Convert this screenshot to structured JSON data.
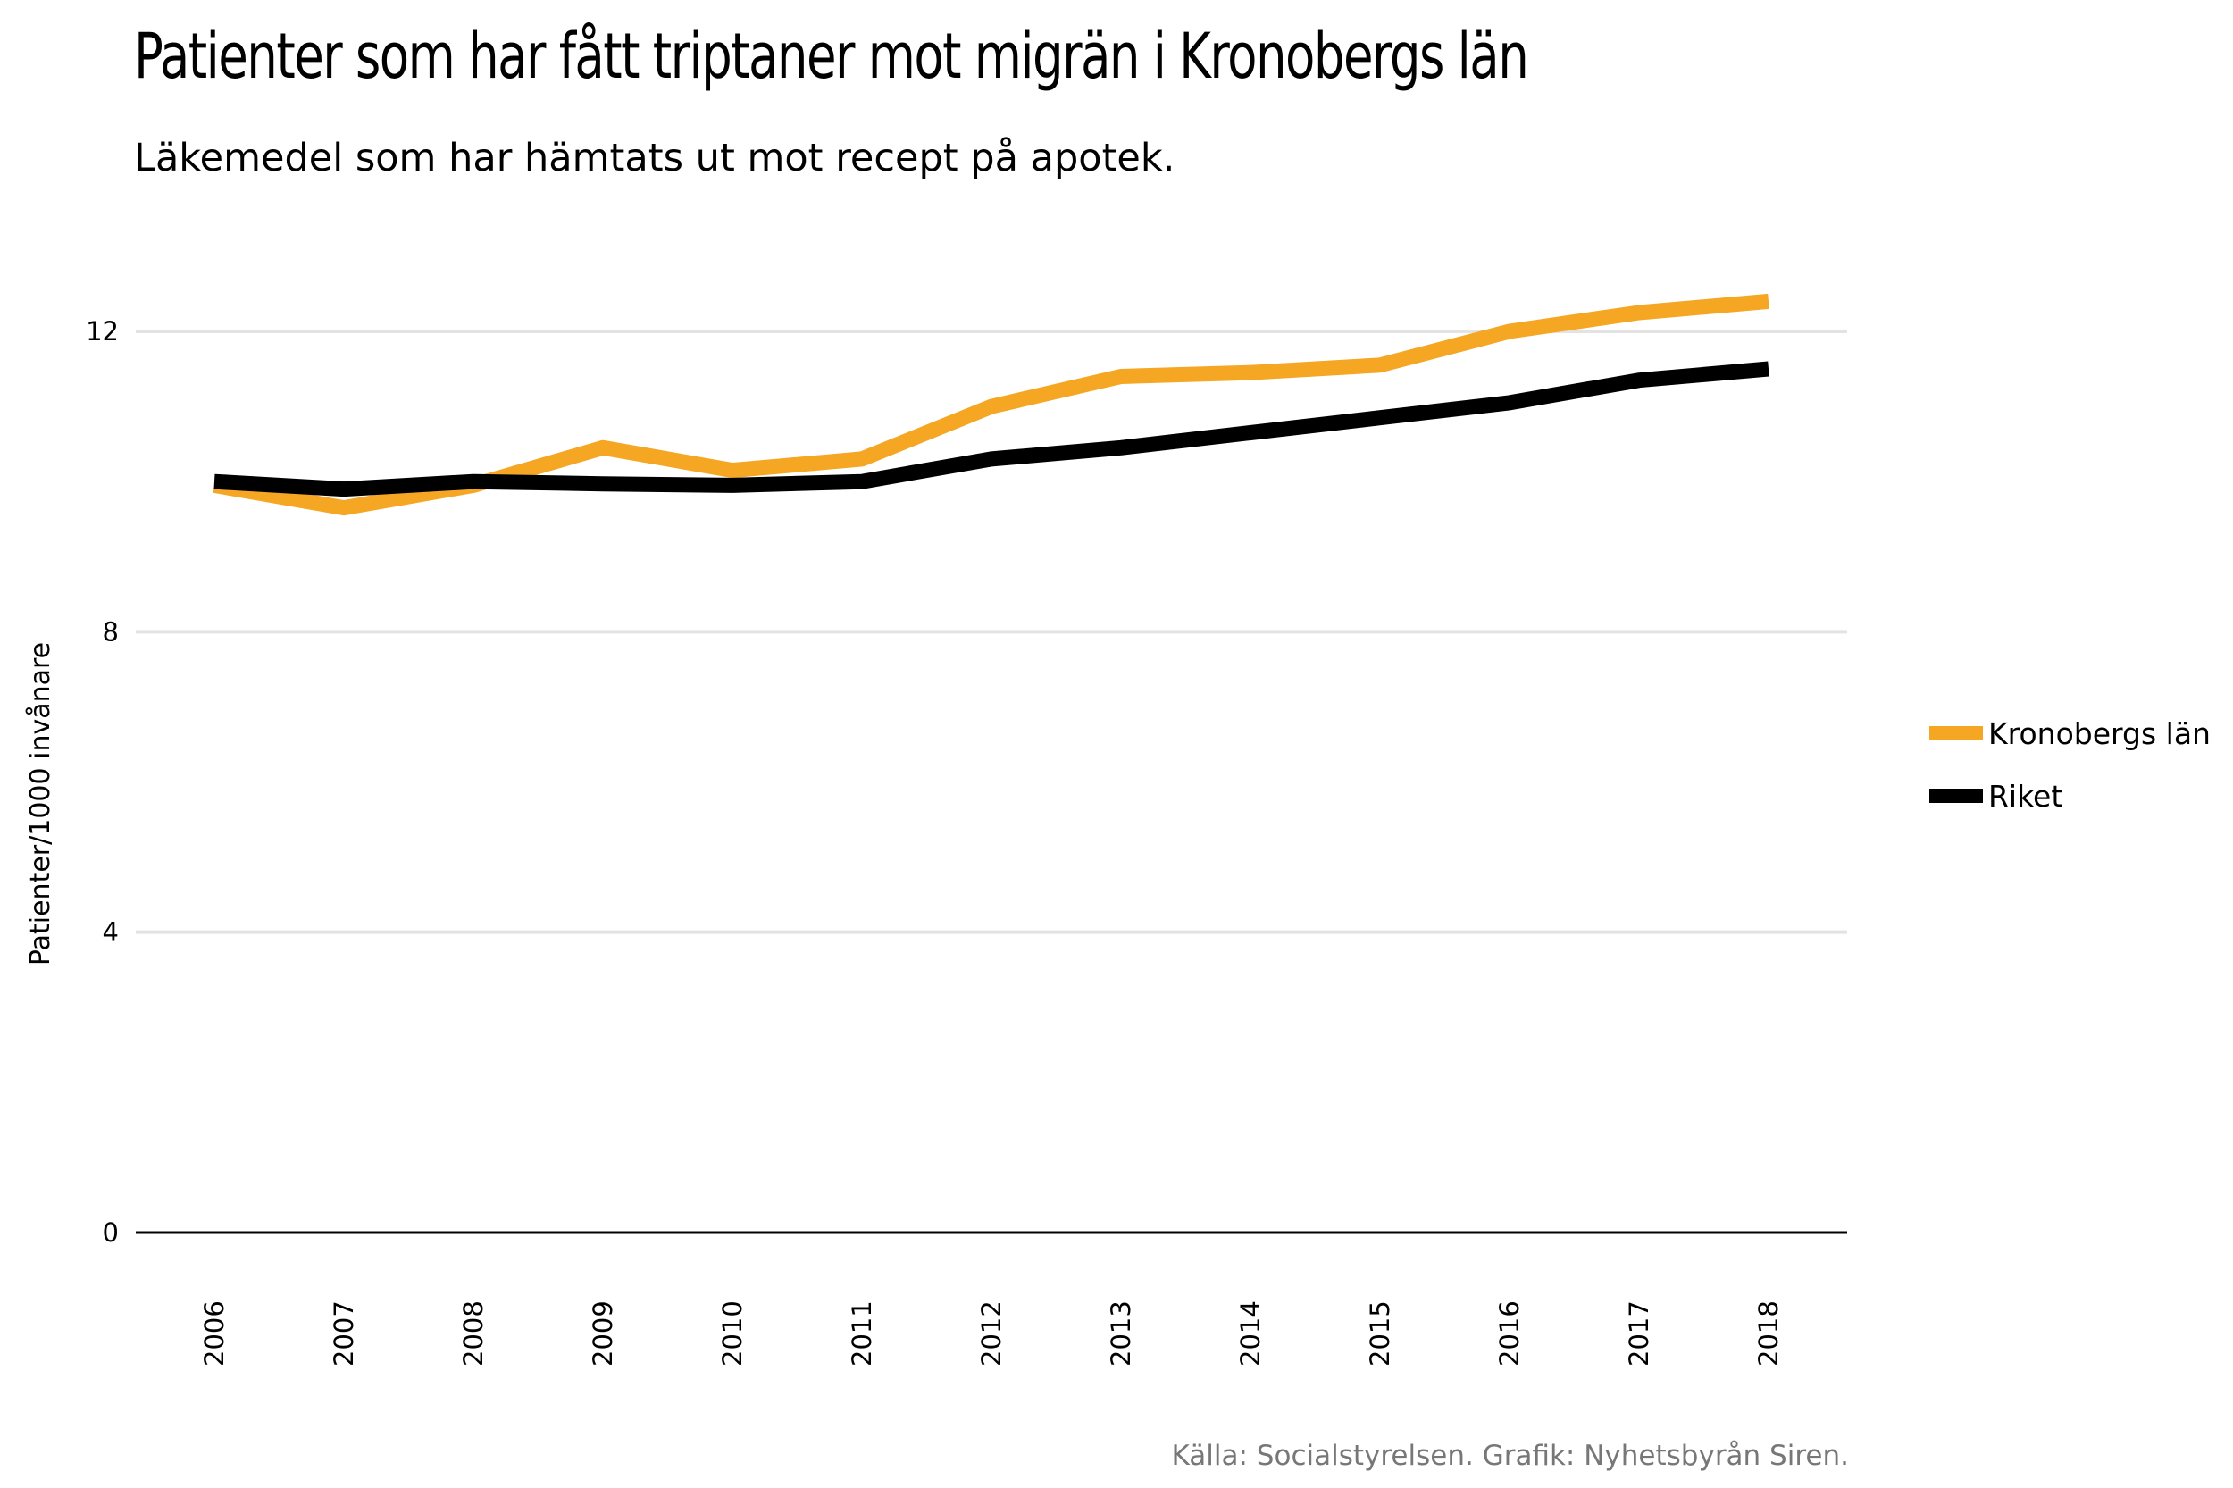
{
  "header": {
    "title": "Patienter som har fått triptaner mot migrän i Kronobergs län",
    "subtitle": "Läkemedel som har hämtats ut mot recept på apotek."
  },
  "footer": {
    "source": "Källa: Socialstyrelsen. Grafik: Nyhetsbyrån Siren."
  },
  "chart_data": {
    "type": "line",
    "title": "Patienter som har fått triptaner mot migrän i Kronobergs län",
    "subtitle": "Läkemedel som har hämtats ut mot recept på apotek.",
    "xlabel": "",
    "ylabel": "Patienter/1000 invånare",
    "x": [
      "2006",
      "2007",
      "2008",
      "2009",
      "2010",
      "2011",
      "2012",
      "2013",
      "2014",
      "2015",
      "2016",
      "2017",
      "2018"
    ],
    "yticks": [
      "0",
      "4",
      "8",
      "12"
    ],
    "ylim": [
      0,
      13
    ],
    "grid": true,
    "legend_position": "right",
    "series": [
      {
        "name": "Kronobergs län",
        "color": "#F5A623",
        "values": [
          9.95,
          9.65,
          9.95,
          10.45,
          10.15,
          10.3,
          11.0,
          11.4,
          11.45,
          11.55,
          12.0,
          12.25,
          12.4
        ]
      },
      {
        "name": "Riket",
        "color": "#000000",
        "values": [
          10.0,
          9.9,
          10.0,
          9.97,
          9.95,
          10.0,
          10.3,
          10.45,
          10.65,
          10.85,
          11.05,
          11.35,
          11.5
        ]
      }
    ]
  }
}
